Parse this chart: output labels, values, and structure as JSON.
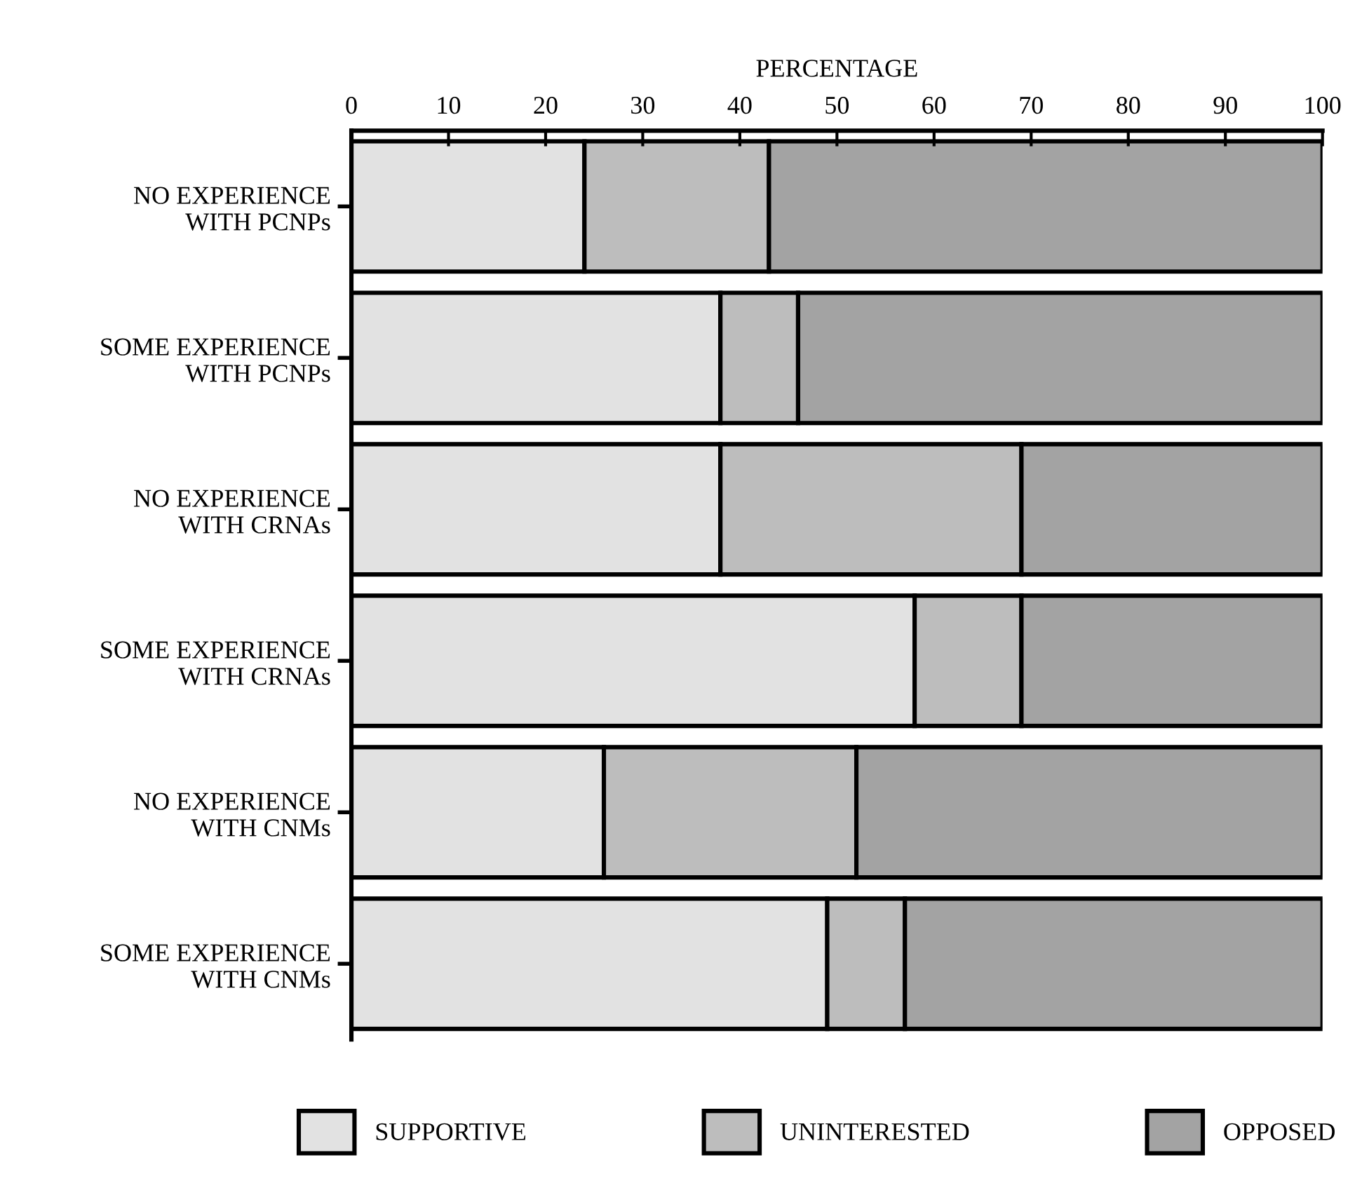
{
  "chart_data": {
    "type": "bar",
    "orientation": "horizontal",
    "stacked": true,
    "xlabel": "PERCENTAGE",
    "categories": [
      "NO EXPERIENCE\nWITH PCNPs",
      "SOME EXPERIENCE\nWITH PCNPs",
      "NO EXPERIENCE\nWITH CRNAs",
      "SOME EXPERIENCE\nWITH CRNAs",
      "NO EXPERIENCE\nWITH CNMs",
      "SOME EXPERIENCE\nWITH CNMs"
    ],
    "series": [
      {
        "name": "SUPPORTIVE",
        "color": "#e2e2e2",
        "values": [
          24,
          38,
          38,
          58,
          26,
          49
        ]
      },
      {
        "name": "UNINTERESTED",
        "color": "#bdbdbd",
        "values": [
          19,
          8,
          31,
          11,
          26,
          8
        ]
      },
      {
        "name": "OPPOSED",
        "color": "#a3a3a3",
        "values": [
          57,
          54,
          31,
          31,
          48,
          43
        ]
      }
    ],
    "xlim": [
      0,
      100
    ],
    "xticks": [
      0,
      10,
      20,
      30,
      40,
      50,
      60,
      70,
      80,
      90,
      100
    ],
    "grid": false,
    "legend": "bottom"
  }
}
